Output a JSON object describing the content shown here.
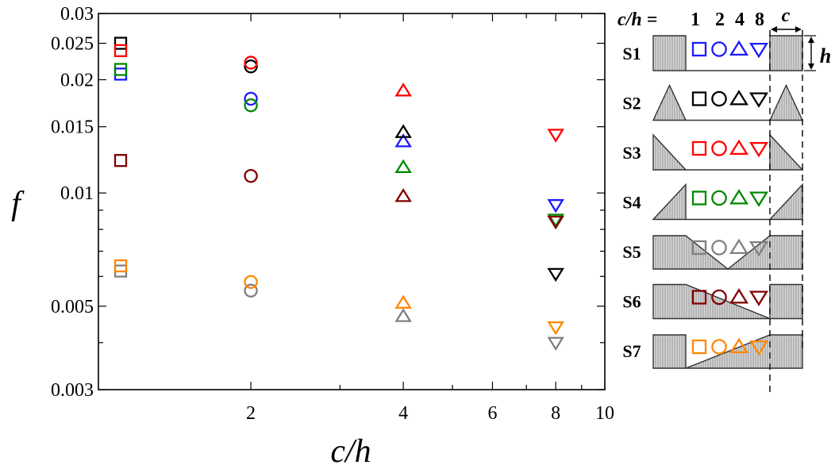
{
  "chart_data": {
    "type": "scatter",
    "xlabel": "c/h",
    "ylabel": "f",
    "x_scale": "log",
    "y_scale": "log",
    "xlim": [
      1,
      10
    ],
    "ylim": [
      0.003,
      0.03
    ],
    "x_ticks": [
      {
        "value": 2,
        "label": "2"
      },
      {
        "value": 4,
        "label": "4"
      },
      {
        "value": 6,
        "label": "6"
      },
      {
        "value": 8,
        "label": "8"
      },
      {
        "value": 10,
        "label": "10"
      }
    ],
    "y_ticks": [
      {
        "value": 0.003,
        "label": "0.003"
      },
      {
        "value": 0.005,
        "label": "0.005"
      },
      {
        "value": 0.01,
        "label": "0.01"
      },
      {
        "value": 0.015,
        "label": "0.015"
      },
      {
        "value": 0.02,
        "label": "0.02"
      },
      {
        "value": 0.025,
        "label": "0.025"
      },
      {
        "value": 0.03,
        "label": "0.03"
      }
    ],
    "grid": false,
    "marker_by_ch": {
      "1": "square",
      "2": "circle",
      "4": "triangle-up",
      "8": "triangle-down"
    },
    "series": [
      {
        "name": "S1",
        "color": "#1a1aff",
        "x": [
          1,
          2,
          4,
          8
        ],
        "y": [
          0.0207,
          0.0178,
          0.0137,
          0.0093
        ]
      },
      {
        "name": "S2",
        "color": "#000000",
        "x": [
          1,
          2,
          4,
          8
        ],
        "y": [
          0.025,
          0.0217,
          0.0145,
          0.0061
        ]
      },
      {
        "name": "S3",
        "color": "#ff0000",
        "x": [
          1,
          2,
          4,
          8
        ],
        "y": [
          0.0239,
          0.0222,
          0.0187,
          0.0143
        ]
      },
      {
        "name": "S4",
        "color": "#008800",
        "x": [
          1,
          2,
          4,
          8
        ],
        "y": [
          0.0213,
          0.0171,
          0.0117,
          0.0085
        ]
      },
      {
        "name": "S5",
        "color": "#808080",
        "x": [
          1,
          2,
          4,
          8
        ],
        "y": [
          0.0062,
          0.0055,
          0.0047,
          0.004
        ]
      },
      {
        "name": "S6",
        "color": "#800000",
        "x": [
          1,
          2,
          4,
          8
        ],
        "y": [
          0.0122,
          0.0111,
          0.0098,
          0.0084
        ]
      },
      {
        "name": "S7",
        "color": "#ff8800",
        "x": [
          1,
          2,
          4,
          8
        ],
        "y": [
          0.0064,
          0.0058,
          0.0051,
          0.0044
        ]
      }
    ]
  },
  "legend": {
    "header_label": "c/h =",
    "header_values": [
      "1",
      "2",
      "4",
      "8"
    ],
    "c_label": "c",
    "h_label": "h",
    "rows": [
      {
        "label": "S1",
        "shape": "rect-block",
        "color": "#1a1aff"
      },
      {
        "label": "S2",
        "shape": "triangle",
        "color": "#000000"
      },
      {
        "label": "S3",
        "shape": "ramp-down",
        "color": "#ff0000"
      },
      {
        "label": "S4",
        "shape": "ramp-up",
        "color": "#008800"
      },
      {
        "label": "S5",
        "shape": "v-notch",
        "color": "#808080"
      },
      {
        "label": "S6",
        "shape": "slope-down",
        "color": "#800000"
      },
      {
        "label": "S7",
        "shape": "slope-up",
        "color": "#ff8800"
      }
    ]
  }
}
